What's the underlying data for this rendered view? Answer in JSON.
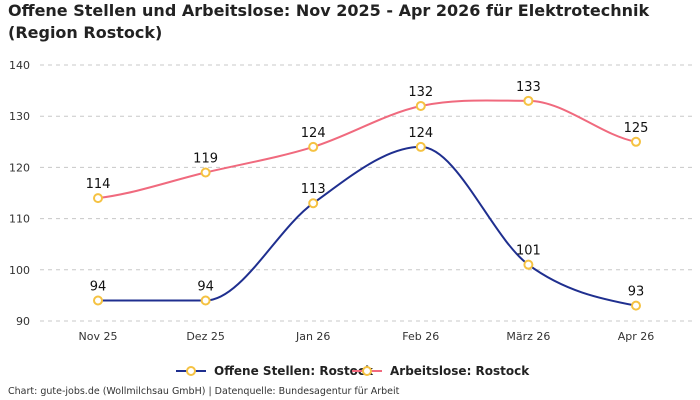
{
  "title": "Offene Stellen und Arbeitslose: Nov 2025 - Apr 2026 für Elektrotechnik (Region Rostock)",
  "footer": "Chart: gute-jobs.de (Wollmilchsau GmbH) | Datenquelle: Bundesagentur für Arbeit",
  "chart_data": {
    "type": "line",
    "title": "Offene Stellen und Arbeitslose: Nov 2025 - Apr 2026 für Elektrotechnik (Region Rostock)",
    "categories": [
      "Nov 25",
      "Dez 25",
      "Jan 26",
      "Feb 26",
      "März 26",
      "Apr 26"
    ],
    "ylim": [
      90,
      140
    ],
    "yticks": [
      90,
      100,
      110,
      120,
      130,
      140
    ],
    "grid": true,
    "legend_position": "bottom",
    "series": [
      {
        "name": "Offene Stellen: Rostock",
        "values": [
          94,
          94,
          113,
          124,
          101,
          93
        ],
        "color": "#1f2f8f"
      },
      {
        "name": "Arbeitslose: Rostock",
        "values": [
          114,
          119,
          124,
          132,
          133,
          125
        ],
        "color": "#f06a7e"
      }
    ],
    "marker_color": "#f5c242"
  }
}
